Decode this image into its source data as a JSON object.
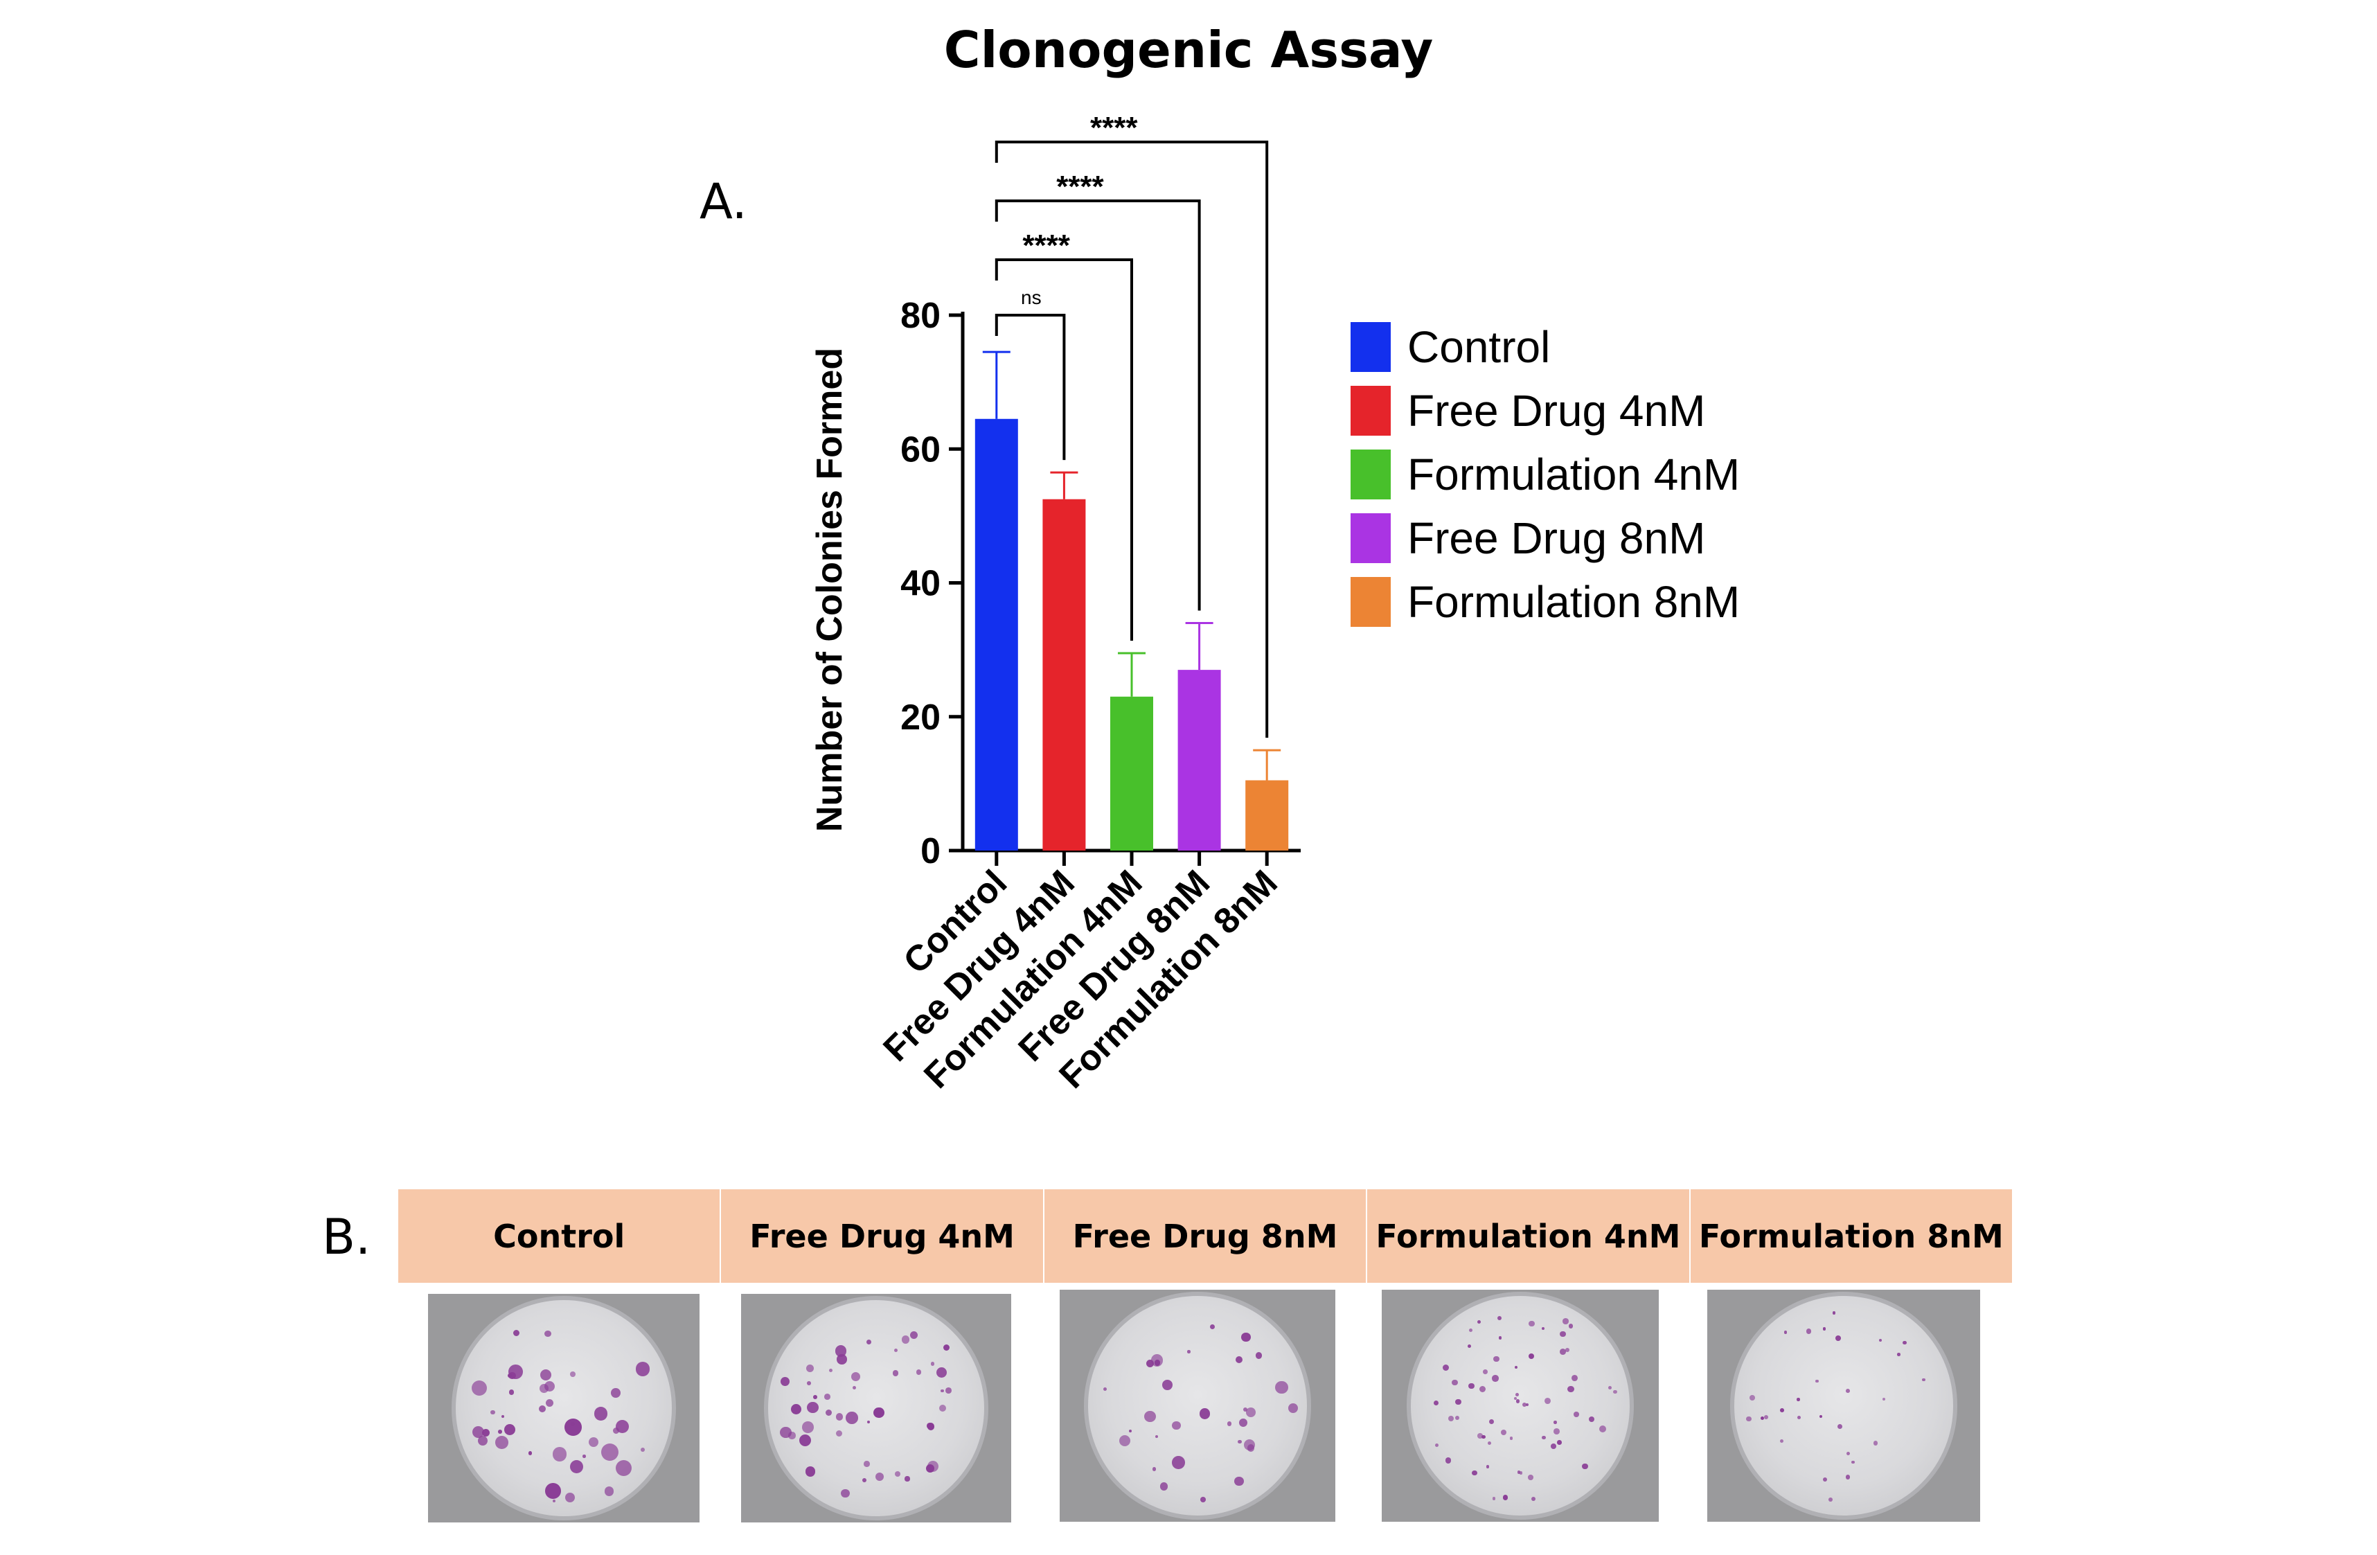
{
  "title": "Clonogenic Assay",
  "panel_a_label": "A.",
  "panel_b_label": "B.",
  "chart_data": {
    "type": "bar",
    "title": "Clonogenic Assay",
    "xlabel": "",
    "ylabel": "Number of Colonies Formed",
    "ylim": [
      0,
      80
    ],
    "yticks": [
      0,
      20,
      40,
      60,
      80
    ],
    "categories": [
      "Control",
      "Free Drug 4nM",
      "Formulation 4nM",
      "Free Drug 8nM",
      "Formulation 8nM"
    ],
    "values": [
      64.5,
      52.5,
      23,
      27,
      10.5
    ],
    "errors": [
      10,
      4,
      6.5,
      7,
      4.5
    ],
    "colors": [
      "#1330ee",
      "#e5242b",
      "#48c02b",
      "#aa34e3",
      "#ec8434"
    ],
    "significance": [
      {
        "from": "Control",
        "to": "Free Drug 4nM",
        "label": "ns"
      },
      {
        "from": "Control",
        "to": "Formulation 4nM",
        "label": "****"
      },
      {
        "from": "Control",
        "to": "Free Drug 8nM",
        "label": "****"
      },
      {
        "from": "Control",
        "to": "Formulation 8nM",
        "label": "****"
      }
    ],
    "legend_position": "right"
  },
  "legend": [
    {
      "label": "Control",
      "color": "#1330ee"
    },
    {
      "label": "Free Drug 4nM",
      "color": "#e5242b"
    },
    {
      "label": "Formulation 4nM",
      "color": "#48c02b"
    },
    {
      "label": "Free Drug 8nM",
      "color": "#aa34e3"
    },
    {
      "label": "Formulation 8nM",
      "color": "#ec8434"
    }
  ],
  "panel_b_headers": [
    "Control",
    "Free Drug 4nM",
    "Free Drug 8nM",
    "Formulation 4nM",
    "Formulation 8nM"
  ]
}
